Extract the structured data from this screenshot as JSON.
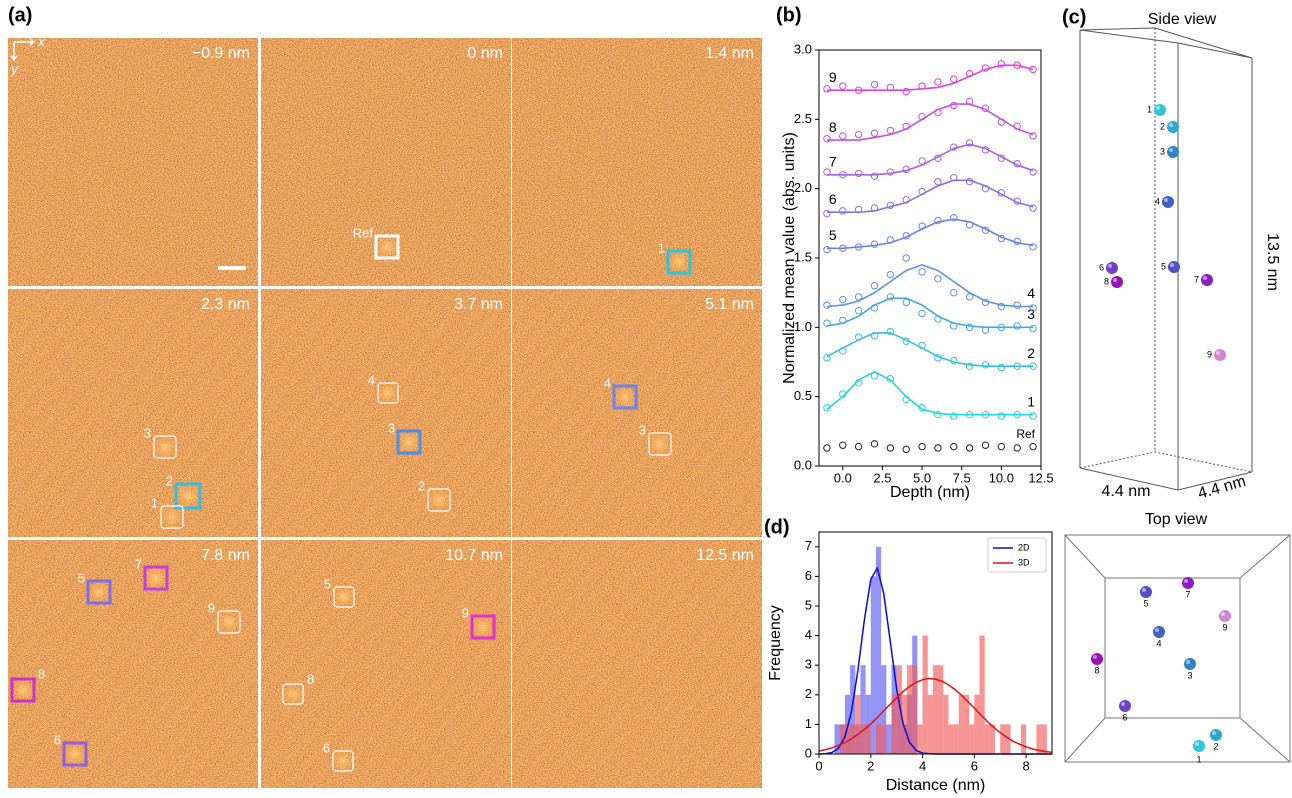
{
  "panel_a": {
    "label": "(a)",
    "axis_x": "x",
    "axis_y": "y",
    "tiles": [
      {
        "depth": "−0.9 nm",
        "markers": []
      },
      {
        "depth": "0 nm",
        "markers": [
          {
            "label": "Ref",
            "color": "#ffffff"
          }
        ]
      },
      {
        "depth": "1.4 nm",
        "markers": [
          {
            "label": "1",
            "color": "#2cc6dc"
          }
        ]
      },
      {
        "depth": "2.3 nm",
        "markers": [
          {
            "label": "3",
            "color": "#ffffff"
          },
          {
            "label": "2",
            "color": "#36bde0"
          },
          {
            "label": "1",
            "color": "#ffffff"
          }
        ]
      },
      {
        "depth": "3.7 nm",
        "markers": [
          {
            "label": "4",
            "color": "#ffffff"
          },
          {
            "label": "3",
            "color": "#4a8ee8"
          },
          {
            "label": "2",
            "color": "#ffffff"
          }
        ]
      },
      {
        "depth": "5.1 nm",
        "markers": [
          {
            "label": "4",
            "color": "#6f80f0"
          },
          {
            "label": "3",
            "color": "#ffffff"
          }
        ]
      },
      {
        "depth": "7.8 nm",
        "markers": [
          {
            "label": "5",
            "color": "#7a70e8"
          },
          {
            "label": "7",
            "color": "#c040e0"
          },
          {
            "label": "9",
            "color": "#ffffff"
          },
          {
            "label": "8",
            "color": "#d030d0"
          },
          {
            "label": "6",
            "color": "#9060e0"
          }
        ]
      },
      {
        "depth": "10.7 nm",
        "markers": [
          {
            "label": "5",
            "color": "#ffffff"
          },
          {
            "label": "9",
            "color": "#e030d0"
          },
          {
            "label": "8",
            "color": "#ffffff"
          },
          {
            "label": "6",
            "color": "#ffffff"
          }
        ]
      },
      {
        "depth": "12.5 nm",
        "markers": []
      }
    ]
  },
  "chart_data": [
    {
      "panel_label": "(b)",
      "type": "scatter",
      "xlabel": "Depth (nm)",
      "ylabel": "Normalized mean value (abs. units)",
      "x": [
        -1,
        0,
        1,
        2,
        3,
        4,
        5,
        6,
        7,
        8,
        9,
        10,
        11,
        12
      ],
      "xlim": [
        -1.5,
        12.5
      ],
      "ylim": [
        0,
        3
      ],
      "xticks": [
        {
          "value": 0,
          "label": "0.0"
        },
        2.5,
        {
          "value": 5,
          "label": "5.0"
        },
        7.5,
        {
          "value": 10,
          "label": "10.0"
        },
        12.5
      ],
      "yticks": [
        {
          "value": 0,
          "label": "0.0"
        },
        0.5,
        {
          "value": 1,
          "label": "1.0"
        },
        1.5,
        {
          "value": 2,
          "label": "2.0"
        },
        2.5,
        {
          "value": 3,
          "label": "3.0"
        }
      ],
      "series": [
        {
          "name": "Ref",
          "color": "#222222",
          "values": [
            0.13,
            0.15,
            0.14,
            0.16,
            0.13,
            0.12,
            0.14,
            0.13,
            0.14,
            0.13,
            0.15,
            0.14,
            0.13,
            0.14
          ]
        },
        {
          "name": "1",
          "color": "#22d4e4",
          "values": [
            0.42,
            0.52,
            0.6,
            0.65,
            0.63,
            0.48,
            0.42,
            0.37,
            0.36,
            0.37,
            0.37,
            0.36,
            0.37,
            0.36
          ],
          "fit": [
            0.41,
            0.5,
            0.62,
            0.68,
            0.62,
            0.5,
            0.41,
            0.38,
            0.37,
            0.37,
            0.37,
            0.37,
            0.37,
            0.37
          ]
        },
        {
          "name": "2",
          "color": "#34bfe4",
          "values": [
            0.78,
            0.83,
            0.93,
            0.94,
            0.97,
            0.9,
            0.87,
            0.78,
            0.76,
            0.72,
            0.73,
            0.71,
            0.72,
            0.72
          ],
          "fit": [
            0.79,
            0.85,
            0.91,
            0.96,
            0.96,
            0.91,
            0.85,
            0.79,
            0.75,
            0.73,
            0.72,
            0.72,
            0.72,
            0.72
          ]
        },
        {
          "name": "3",
          "color": "#48a6ea",
          "values": [
            1.03,
            1.05,
            1.12,
            1.14,
            1.22,
            1.18,
            1.1,
            1.06,
            1.01,
            1.0,
            0.98,
            1.0,
            1.01,
            0.99
          ],
          "fit": [
            1.01,
            1.03,
            1.08,
            1.16,
            1.21,
            1.21,
            1.16,
            1.08,
            1.03,
            1.01,
            1.0,
            1.0,
            1.0,
            1.0
          ]
        },
        {
          "name": "4",
          "color": "#5a90ee",
          "values": [
            1.16,
            1.2,
            1.22,
            1.3,
            1.38,
            1.5,
            1.4,
            1.35,
            1.25,
            1.22,
            1.18,
            1.15,
            1.16,
            1.14
          ],
          "fit": [
            1.15,
            1.16,
            1.19,
            1.25,
            1.33,
            1.41,
            1.45,
            1.41,
            1.33,
            1.25,
            1.19,
            1.16,
            1.15,
            1.15
          ]
        },
        {
          "name": "5",
          "color": "#6a80ee",
          "values": [
            1.56,
            1.57,
            1.58,
            1.6,
            1.63,
            1.66,
            1.73,
            1.77,
            1.79,
            1.74,
            1.7,
            1.64,
            1.62,
            1.58
          ],
          "fit": [
            1.57,
            1.57,
            1.58,
            1.59,
            1.61,
            1.65,
            1.71,
            1.76,
            1.78,
            1.76,
            1.71,
            1.65,
            1.61,
            1.59
          ]
        },
        {
          "name": "6",
          "color": "#8870e8",
          "values": [
            1.82,
            1.84,
            1.85,
            1.86,
            1.88,
            1.92,
            1.98,
            2.05,
            2.08,
            2.05,
            2.0,
            1.97,
            1.91,
            1.86
          ],
          "fit": [
            1.83,
            1.83,
            1.83,
            1.84,
            1.87,
            1.9,
            1.96,
            2.02,
            2.06,
            2.06,
            2.02,
            1.96,
            1.9,
            1.87
          ]
        },
        {
          "name": "7",
          "color": "#a860e4",
          "values": [
            2.12,
            2.1,
            2.11,
            2.09,
            2.12,
            2.14,
            2.2,
            2.22,
            2.3,
            2.33,
            2.28,
            2.22,
            2.18,
            2.12
          ],
          "fit": [
            2.1,
            2.1,
            2.1,
            2.1,
            2.11,
            2.13,
            2.17,
            2.23,
            2.29,
            2.32,
            2.29,
            2.23,
            2.17,
            2.13
          ]
        },
        {
          "name": "8",
          "color": "#c450e0",
          "values": [
            2.36,
            2.38,
            2.39,
            2.4,
            2.42,
            2.45,
            2.52,
            2.55,
            2.6,
            2.63,
            2.58,
            2.48,
            2.45,
            2.38
          ],
          "fit": [
            2.35,
            2.35,
            2.35,
            2.37,
            2.39,
            2.43,
            2.5,
            2.57,
            2.61,
            2.61,
            2.57,
            2.5,
            2.43,
            2.39
          ]
        },
        {
          "name": "9",
          "color": "#e040e0",
          "values": [
            2.72,
            2.74,
            2.71,
            2.75,
            2.73,
            2.7,
            2.74,
            2.77,
            2.79,
            2.83,
            2.87,
            2.9,
            2.89,
            2.86
          ],
          "fit": [
            2.71,
            2.71,
            2.71,
            2.71,
            2.71,
            2.71,
            2.72,
            2.73,
            2.76,
            2.81,
            2.86,
            2.89,
            2.89,
            2.86
          ]
        }
      ]
    },
    {
      "panel_label": "(d)",
      "type": "histogram",
      "xlabel": "Distance (nm)",
      "ylabel": "Frequency",
      "legend": "upper right",
      "bins": [
        0.4,
        0.6,
        0.8,
        1.0,
        1.2,
        1.4,
        1.6,
        1.8,
        2.0,
        2.2,
        2.4,
        2.6,
        2.8,
        3.0,
        3.2,
        3.4,
        3.6,
        3.8,
        4.0,
        4.2,
        4.4,
        4.6,
        4.8,
        5.0,
        5.2,
        5.4,
        5.6,
        5.8,
        6.0,
        6.2,
        6.4,
        6.6,
        6.8,
        7.0,
        7.2,
        7.4,
        7.6,
        7.8,
        8.0,
        8.2,
        8.4,
        8.6,
        8.8
      ],
      "xlim": [
        0,
        9
      ],
      "ylim": [
        0,
        7.5
      ],
      "xticks": [
        0,
        2,
        4,
        6,
        8
      ],
      "yticks": [
        0,
        1,
        2,
        3,
        4,
        5,
        6,
        7
      ],
      "fit_x": [
        0,
        0.25,
        0.5,
        0.75,
        1,
        1.25,
        1.5,
        1.75,
        2,
        2.25,
        2.5,
        2.75,
        3,
        3.25,
        3.5,
        3.75,
        4,
        4.25,
        4.5,
        4.75,
        5,
        5.25,
        5.5,
        5.75,
        6,
        6.25,
        6.5,
        6.75,
        7,
        7.25,
        7.5,
        7.75,
        8,
        8.25,
        8.5,
        8.75,
        9
      ],
      "series": [
        {
          "name": "2D",
          "color": "#0a0ad8",
          "bar_color": "#5a5af2",
          "counts": [
            0,
            1,
            1,
            2,
            3,
            1,
            3,
            2,
            6,
            7,
            3,
            1,
            3,
            2,
            1,
            2,
            4,
            0,
            0,
            0,
            0,
            0,
            0,
            0,
            0,
            0,
            0,
            0,
            0,
            0,
            0,
            0,
            0,
            0,
            0,
            0,
            0,
            0,
            0,
            0,
            0,
            0
          ],
          "fit": [
            0.0,
            0.01,
            0.05,
            0.19,
            0.58,
            1.42,
            2.8,
            4.51,
            5.9,
            6.28,
            5.43,
            3.82,
            2.19,
            1.02,
            0.39,
            0.12,
            0.03,
            0.01,
            0,
            0,
            0,
            0,
            0,
            0,
            0,
            0,
            0,
            0,
            0,
            0,
            0,
            0,
            0,
            0,
            0,
            0,
            0
          ]
        },
        {
          "name": "3D",
          "color": "#e01414",
          "bar_color": "#f25a5a",
          "counts": [
            0,
            0,
            1,
            1,
            1,
            2,
            1,
            1,
            0,
            1,
            1,
            0,
            2,
            3,
            2,
            3,
            3,
            1,
            4,
            2,
            3,
            3,
            2,
            1,
            1,
            2,
            2,
            1,
            2,
            4,
            1,
            1,
            0,
            1,
            1,
            0,
            0,
            1,
            0,
            0,
            1,
            1
          ],
          "fit": [
            0.1,
            0.15,
            0.21,
            0.29,
            0.39,
            0.51,
            0.66,
            0.83,
            1.02,
            1.23,
            1.46,
            1.68,
            1.9,
            2.11,
            2.28,
            2.42,
            2.51,
            2.55,
            2.53,
            2.46,
            2.34,
            2.18,
            1.99,
            1.77,
            1.55,
            1.32,
            1.1,
            0.9,
            0.72,
            0.57,
            0.43,
            0.33,
            0.24,
            0.17,
            0.12,
            0.08,
            0.06
          ]
        }
      ]
    }
  ],
  "panel_c": {
    "label": "(c)",
    "side_title": "Side view",
    "top_title": "Top view",
    "height_label": "13.5 nm",
    "width_label": "4.4 nm",
    "depth_label": "4.4 nm",
    "atoms": [
      {
        "label": "1",
        "color": "#2ec6d8"
      },
      {
        "label": "2",
        "color": "#2ea8d2"
      },
      {
        "label": "3",
        "color": "#2f82c8"
      },
      {
        "label": "4",
        "color": "#3f62c2"
      },
      {
        "label": "5",
        "color": "#5050c2"
      },
      {
        "label": "6",
        "color": "#6e40c8"
      },
      {
        "label": "7",
        "color": "#8a1ec0"
      },
      {
        "label": "8",
        "color": "#9a10b6"
      },
      {
        "label": "9",
        "color": "#d284d4"
      }
    ]
  }
}
